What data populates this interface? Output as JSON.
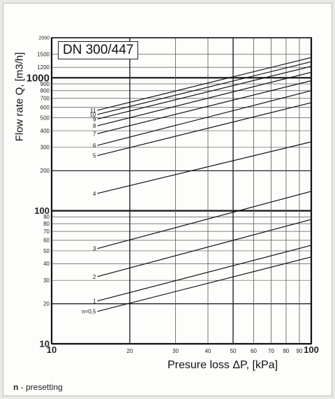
{
  "chart_data": {
    "type": "line",
    "title": "DN 300/447",
    "xlabel": "Presure loss ΔP, [kPa]",
    "ylabel": "Flow rate Q, [m3/h]",
    "x_scale": "log",
    "y_scale": "log",
    "xlim": [
      10,
      100
    ],
    "ylim": [
      10,
      2000
    ],
    "grid": true,
    "x_ticks": [
      {
        "value": 10,
        "label": "10"
      },
      {
        "value": 20,
        "label": "20"
      },
      {
        "value": 30,
        "label": "30"
      },
      {
        "value": 40,
        "label": "40"
      },
      {
        "value": 50,
        "label": "50"
      },
      {
        "value": 60,
        "label": "60"
      },
      {
        "value": 70,
        "label": "70"
      },
      {
        "value": 80,
        "label": "80"
      },
      {
        "value": 90,
        "label": "90"
      },
      {
        "value": 100,
        "label": "100"
      }
    ],
    "y_ticks": [
      {
        "value": 10,
        "label": "10"
      },
      {
        "value": 20,
        "label": "20"
      },
      {
        "value": 30,
        "label": "30"
      },
      {
        "value": 40,
        "label": "40"
      },
      {
        "value": 50,
        "label": "50"
      },
      {
        "value": 60,
        "label": "60"
      },
      {
        "value": 70,
        "label": "70"
      },
      {
        "value": 80,
        "label": "80"
      },
      {
        "value": 90,
        "label": "90"
      },
      {
        "value": 100,
        "label": "100"
      },
      {
        "value": 200,
        "label": "200"
      },
      {
        "value": 300,
        "label": "300"
      },
      {
        "value": 400,
        "label": "400"
      },
      {
        "value": 500,
        "label": "500"
      },
      {
        "value": 600,
        "label": "600"
      },
      {
        "value": 700,
        "label": "700"
      },
      {
        "value": 800,
        "label": "800"
      },
      {
        "value": 900,
        "label": "900"
      },
      {
        "value": 1000,
        "label": "1000"
      },
      {
        "value": 1200,
        "label": "1200"
      },
      {
        "value": 1500,
        "label": "1500"
      },
      {
        "value": 2000,
        "label": "2000"
      }
    ],
    "series": [
      {
        "name": "n=0,5",
        "x": [
          15,
          100
        ],
        "y": [
          17.5,
          45
        ]
      },
      {
        "name": "1",
        "x": [
          15,
          100
        ],
        "y": [
          21,
          55
        ]
      },
      {
        "name": "2",
        "x": [
          15,
          100
        ],
        "y": [
          32,
          86
        ]
      },
      {
        "name": "3",
        "x": [
          15,
          100
        ],
        "y": [
          52,
          140
        ]
      },
      {
        "name": "4",
        "x": [
          15,
          100
        ],
        "y": [
          135,
          330
        ]
      },
      {
        "name": "5",
        "x": [
          15,
          100
        ],
        "y": [
          260,
          650
        ]
      },
      {
        "name": "6",
        "x": [
          15,
          100
        ],
        "y": [
          310,
          800
        ]
      },
      {
        "name": "7",
        "x": [
          15,
          100
        ],
        "y": [
          380,
          950
        ]
      },
      {
        "name": "8",
        "x": [
          15,
          100
        ],
        "y": [
          435,
          1100
        ]
      },
      {
        "name": "9",
        "x": [
          15,
          100
        ],
        "y": [
          490,
          1220
        ]
      },
      {
        "name": "10",
        "x": [
          15,
          100
        ],
        "y": [
          530,
          1320
        ]
      },
      {
        "name": "11",
        "x": [
          15,
          100
        ],
        "y": [
          570,
          1420
        ]
      }
    ]
  },
  "footnote": {
    "symbol": "n",
    "text": " - presetting"
  }
}
